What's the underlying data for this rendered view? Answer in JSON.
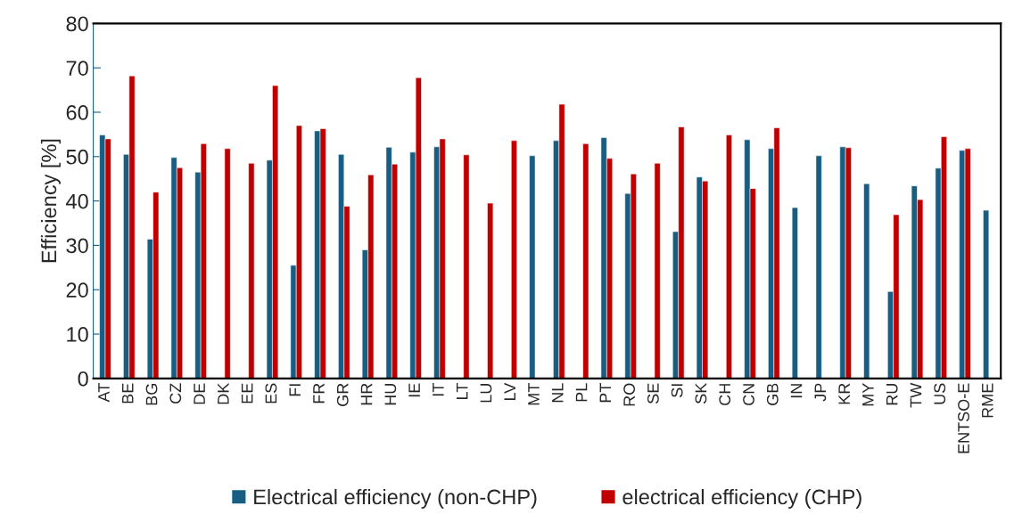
{
  "chart_data": {
    "type": "bar",
    "ylabel": "Efficiency [%]",
    "categories": [
      "AT",
      "BE",
      "BG",
      "CZ",
      "DE",
      "DK",
      "EE",
      "ES",
      "FI",
      "FR",
      "GR",
      "HR",
      "HU",
      "IE",
      "IT",
      "LT",
      "LU",
      "LV",
      "MT",
      "NL",
      "PL",
      "PT",
      "RO",
      "SE",
      "SI",
      "SK",
      "CH",
      "CN",
      "GB",
      "IN",
      "JP",
      "KR",
      "MY",
      "RU",
      "TW",
      "US",
      "ENTSO-E",
      "RME"
    ],
    "series": [
      {
        "name": "Electrical efficiency (non-CHP)",
        "color": "#175e82",
        "values": [
          54.9,
          50.5,
          31.4,
          49.8,
          46.5,
          null,
          null,
          49.2,
          25.5,
          55.8,
          50.5,
          29.0,
          52.1,
          51.0,
          52.2,
          null,
          null,
          null,
          50.2,
          53.6,
          null,
          54.3,
          41.7,
          null,
          33.1,
          45.4,
          null,
          53.8,
          51.8,
          38.5,
          50.2,
          52.2,
          43.9,
          19.6,
          43.4,
          47.4,
          51.4,
          37.9
        ]
      },
      {
        "name": "electrical efficiency (CHP)",
        "color": "#c00000",
        "values": [
          54.0,
          68.2,
          42.0,
          47.5,
          52.9,
          51.8,
          48.5,
          66.0,
          57.0,
          56.3,
          38.8,
          45.9,
          48.3,
          67.8,
          54.0,
          50.4,
          39.5,
          53.6,
          null,
          61.8,
          52.9,
          49.6,
          46.1,
          48.5,
          56.7,
          44.5,
          54.9,
          42.8,
          56.5,
          null,
          null,
          52.0,
          null,
          36.9,
          40.3,
          54.5,
          51.8,
          null
        ]
      }
    ],
    "ylim": [
      0,
      80
    ],
    "yticks": [
      0,
      10,
      20,
      30,
      40,
      50,
      60,
      70,
      80
    ],
    "grid": false,
    "legend": "bottom"
  }
}
